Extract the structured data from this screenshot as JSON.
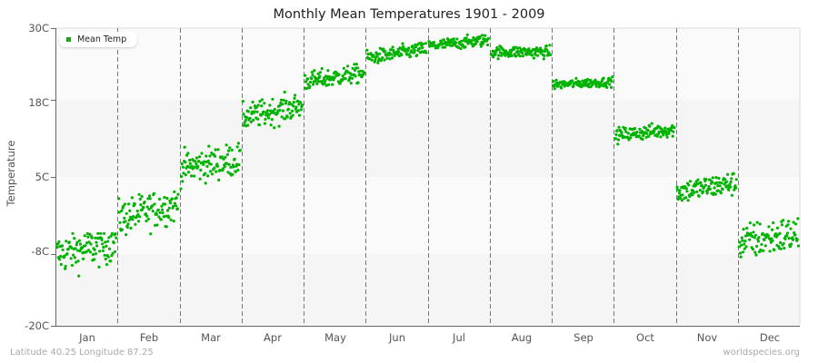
{
  "chart_data": {
    "type": "scatter",
    "title": "Monthly Mean Temperatures 1901 - 2009",
    "xlabel": "",
    "ylabel": "Temperature",
    "ylim": [
      -20,
      30
    ],
    "yticks": [
      "30C",
      "18C",
      "5C",
      "-8C",
      "-20C"
    ],
    "ytick_values": [
      30,
      18,
      5,
      -8,
      -20
    ],
    "categories": [
      "Jan",
      "Feb",
      "Mar",
      "Apr",
      "May",
      "Jun",
      "Jul",
      "Aug",
      "Sep",
      "Oct",
      "Nov",
      "Dec"
    ],
    "years": [
      1901,
      2009
    ],
    "series": [
      {
        "name": "Mean Temp",
        "color": "#00b300",
        "monthly_summary": [
          {
            "month": "Jan",
            "start_mean": -8.0,
            "end_mean": -6.0,
            "spread": 3.0,
            "min": -12.5,
            "max": -4.5
          },
          {
            "month": "Feb",
            "start_mean": -2.0,
            "end_mean": 0.5,
            "spread": 2.8,
            "min": -8.0,
            "max": 2.5
          },
          {
            "month": "Mar",
            "start_mean": 6.5,
            "end_mean": 8.0,
            "spread": 2.5,
            "min": 3.0,
            "max": 11.5
          },
          {
            "month": "Apr",
            "start_mean": 15.0,
            "end_mean": 17.0,
            "spread": 2.0,
            "min": 11.0,
            "max": 19.5
          },
          {
            "month": "May",
            "start_mean": 21.0,
            "end_mean": 22.5,
            "spread": 1.4,
            "min": 18.5,
            "max": 24.0
          },
          {
            "month": "Jun",
            "start_mean": 25.0,
            "end_mean": 26.5,
            "spread": 1.1,
            "min": 23.0,
            "max": 27.5
          },
          {
            "month": "Jul",
            "start_mean": 27.0,
            "end_mean": 28.0,
            "spread": 0.9,
            "min": 25.5,
            "max": 29.0
          },
          {
            "month": "Aug",
            "start_mean": 26.0,
            "end_mean": 26.0,
            "spread": 0.9,
            "min": 24.0,
            "max": 27.5
          },
          {
            "month": "Sep",
            "start_mean": 20.5,
            "end_mean": 21.0,
            "spread": 0.7,
            "min": 19.3,
            "max": 22.0
          },
          {
            "month": "Oct",
            "start_mean": 12.0,
            "end_mean": 13.0,
            "spread": 1.1,
            "min": 10.0,
            "max": 15.0
          },
          {
            "month": "Nov",
            "start_mean": 2.5,
            "end_mean": 4.0,
            "spread": 1.8,
            "min": -3.5,
            "max": 7.5
          },
          {
            "month": "Dec",
            "start_mean": -6.0,
            "end_mean": -4.5,
            "spread": 2.8,
            "min": -13.0,
            "max": -2.0
          }
        ]
      }
    ],
    "legend": {
      "position": "top-left",
      "entries": [
        "Mean Temp"
      ]
    },
    "grid": {
      "horizontal_bands": true,
      "vertical_month_dividers": "dashed"
    }
  },
  "footer": {
    "left": "Latitude 40.25 Longitude 87.25",
    "right": "worldspecies.org"
  }
}
